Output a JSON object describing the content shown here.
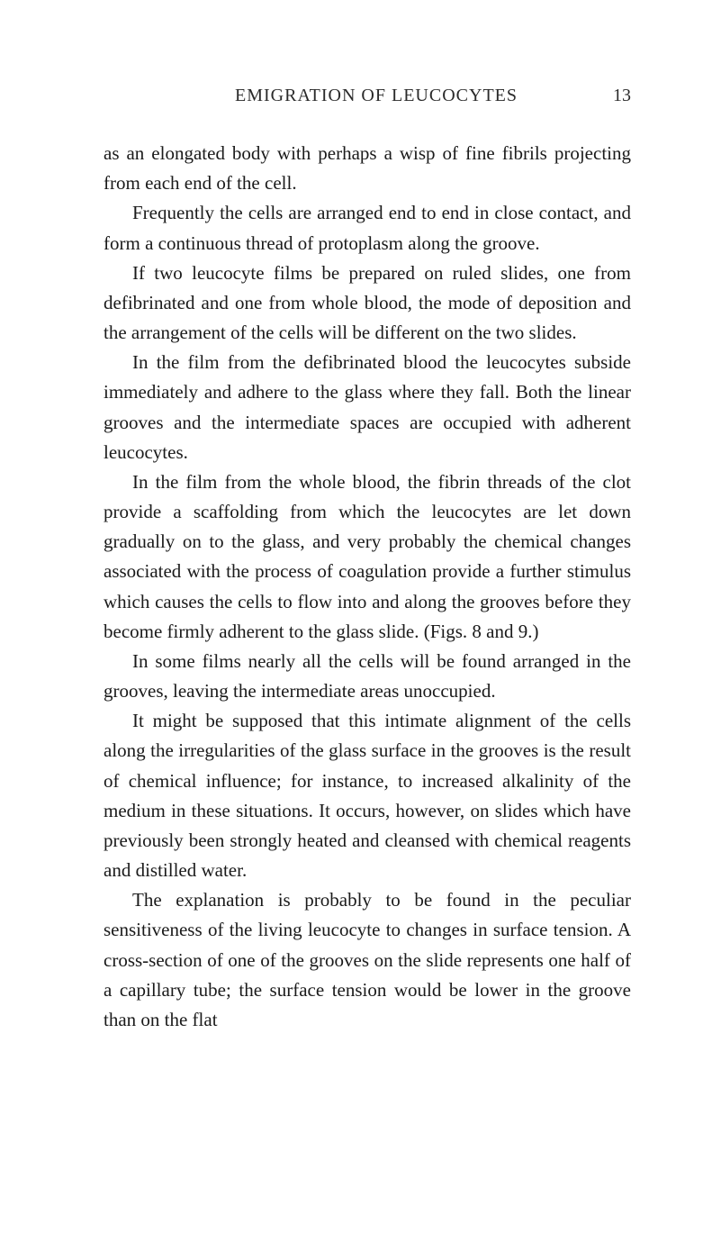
{
  "header": {
    "title": "EMIGRATION OF LEUCOCYTES",
    "pageNumber": "13"
  },
  "paragraphs": {
    "p1": "as an elongated body with perhaps a wisp of fine fibrils projecting from each end of the cell.",
    "p2": "Frequently the cells are arranged end to end in close contact, and form a continuous thread of protoplasm along the groove.",
    "p3": "If two leucocyte films be prepared on ruled slides, one from defibrinated and one from whole blood, the mode of deposition and the arrangement of the cells will be different on the two slides.",
    "p4": "In the film from the defibrinated blood the leucocytes subside immediately and adhere to the glass where they fall. Both the linear grooves and the intermediate spaces are occupied with adherent leucocytes.",
    "p5": "In the film from the whole blood, the fibrin threads of the clot provide a scaffolding from which the leucocytes are let down gradually on to the glass, and very probably the chemical changes associated with the process of coagu­lation provide a further stimulus which causes the cells to flow into and along the grooves before they become firmly adherent to the glass slide. (Figs. 8 and 9.)",
    "p6": "In some films nearly all the cells will be found arranged in the grooves, leaving the intermediate areas unoccupied.",
    "p7": "It might be supposed that this intimate alignment of the cells along the irregularities of the glass surface in the grooves is the result of chemical influence; for instance, to increased alkalinity of the medium in these situations. It occurs, however, on slides which have previously been strongly heated and cleansed with chemical reagents and distilled water.",
    "p8": "The explanation is probably to be found in the peculiar sensitiveness of the living leucocyte to changes in surface tension. A cross-section of one of the grooves on the slide represents one half of a capillary tube; the surface tension would be lower in the groove than on the flat"
  },
  "colors": {
    "background": "#ffffff",
    "text": "#1a1a1a",
    "headerText": "#2a2a2a"
  },
  "typography": {
    "bodyFontSize": 21,
    "headerFontSize": 20,
    "lineHeight": 1.58,
    "textIndent": 32
  }
}
